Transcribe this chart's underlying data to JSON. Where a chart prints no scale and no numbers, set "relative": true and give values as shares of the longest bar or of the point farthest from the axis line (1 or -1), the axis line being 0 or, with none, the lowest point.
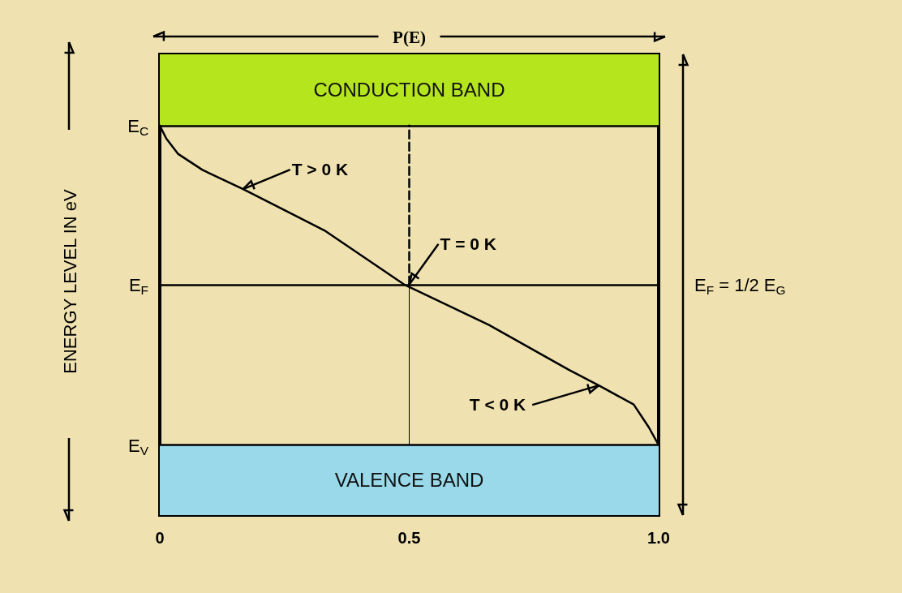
{
  "chart_data": {
    "type": "line",
    "xlabel": "P(E)",
    "ylabel": "ENERGY LEVEL IN eV",
    "xlim": [
      0,
      1
    ],
    "xticks": [
      0,
      0.5,
      {
        "value": 1,
        "label": "1.0"
      }
    ],
    "relative": true,
    "grid": false,
    "marker": "none",
    "series": [
      {
        "color": "#000000",
        "x": [
          0,
          0.013,
          0.037,
          0.086,
          0.167,
          0.33,
          0.49,
          0.66,
          0.82,
          0.88,
          0.95,
          0.98,
          1
        ],
        "values": [
          1,
          0.967,
          0.927,
          0.886,
          0.837,
          0.731,
          0.592,
          0.488,
          0.373,
          0.333,
          0.284,
          0.226,
          0.18
        ],
        "line_style": "solid"
      },
      {
        "color": "#000000",
        "x": [
          0.5,
          0.5
        ],
        "values": [
          0.592,
          1
        ],
        "line_style": "dashed"
      },
      {
        "color": "#000000",
        "x": [
          0.5,
          0.5
        ],
        "values": [
          0.18,
          0.592
        ],
        "line_style": "solid"
      }
    ],
    "ref_lines": [
      {
        "axis": "y",
        "value": 1,
        "label": "E$_{C}$",
        "color": "#000000"
      },
      {
        "axis": "y",
        "value": 0.592,
        "label": "E$_{F}$",
        "color": "#000000"
      },
      {
        "axis": "y",
        "value": 0.18,
        "label": "E$_{V}$",
        "color": "#000000"
      }
    ],
    "bands": [
      {
        "axis": "y",
        "from": 1,
        "to": 1.183,
        "label": "CONDUCTION BAND",
        "color": "#b5e61d"
      },
      {
        "axis": "y",
        "from": 0,
        "to": 0.18,
        "label": "VALENCE BAND",
        "color": "#99d9ea"
      }
    ],
    "annotations": [
      {
        "text": "T > 0 K",
        "x": 0.167,
        "y": 0.837
      },
      {
        "text": "T = 0 K",
        "x": 0.5,
        "y": 0.592
      },
      {
        "text": "T < 0 K",
        "x": 0.88,
        "y": 0.333
      },
      "E$_{F}$ = 1/2 E$_{G}$"
    ]
  }
}
